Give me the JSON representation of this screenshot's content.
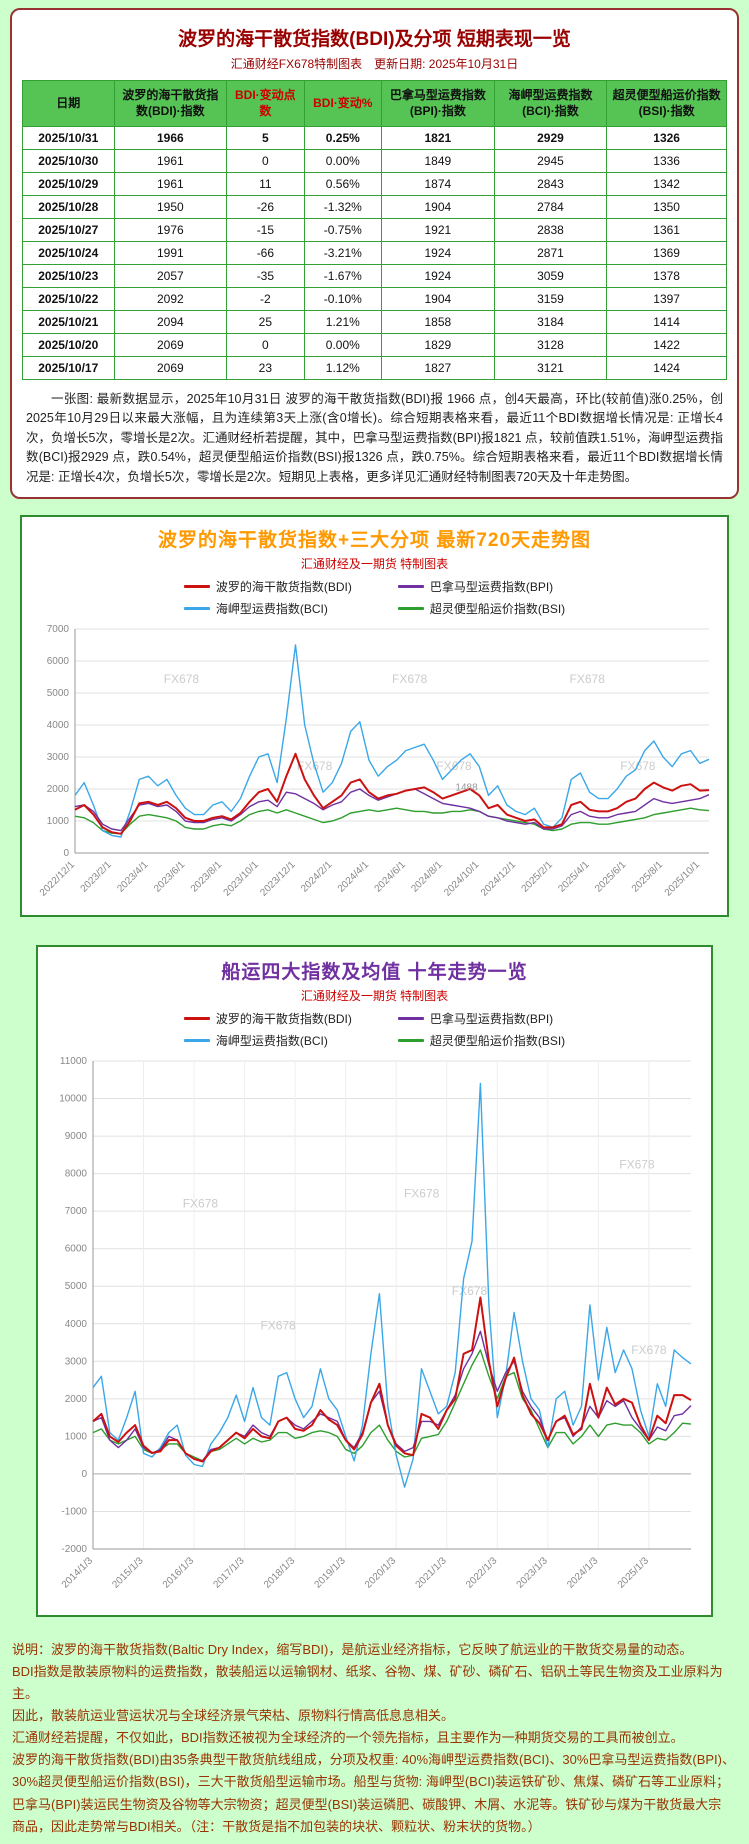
{
  "page": {
    "background": "#ccffcc"
  },
  "table_section": {
    "title": "波罗的海干散货指数(BDI)及分项 短期表现一览",
    "subtitle": "汇通财经FX678特制图表　更新日期: 2025年10月31日",
    "columns": [
      "日期",
      "波罗的海干散货指数(BDI)·指数",
      "BDI·变动点数",
      "BDI·变动%",
      "巴拿马型运费指数(BPI)·指数",
      "海岬型运费指数(BCI)·指数",
      "超灵便型船运价指数(BSI)·指数"
    ],
    "red_header_indexes": [
      2,
      3
    ],
    "rows": [
      [
        "2025/10/31",
        "1966",
        "5",
        "0.25%",
        "1821",
        "2929",
        "1326"
      ],
      [
        "2025/10/30",
        "1961",
        "0",
        "0.00%",
        "1849",
        "2945",
        "1336"
      ],
      [
        "2025/10/29",
        "1961",
        "11",
        "0.56%",
        "1874",
        "2843",
        "1342"
      ],
      [
        "2025/10/28",
        "1950",
        "-26",
        "-1.32%",
        "1904",
        "2784",
        "1350"
      ],
      [
        "2025/10/27",
        "1976",
        "-15",
        "-0.75%",
        "1921",
        "2838",
        "1361"
      ],
      [
        "2025/10/24",
        "1991",
        "-66",
        "-3.21%",
        "1924",
        "2871",
        "1369"
      ],
      [
        "2025/10/23",
        "2057",
        "-35",
        "-1.67%",
        "1924",
        "3059",
        "1378"
      ],
      [
        "2025/10/22",
        "2092",
        "-2",
        "-0.10%",
        "1904",
        "3159",
        "1397"
      ],
      [
        "2025/10/21",
        "2094",
        "25",
        "1.21%",
        "1858",
        "3184",
        "1414"
      ],
      [
        "2025/10/20",
        "2069",
        "0",
        "0.00%",
        "1829",
        "3128",
        "1422"
      ],
      [
        "2025/10/17",
        "2069",
        "23",
        "1.12%",
        "1827",
        "3121",
        "1424"
      ]
    ],
    "note": "一张图: 最新数据显示，2025年10月31日 波罗的海干散货指数(BDI)报 1966 点，创4天最高，环比(较前值)涨0.25%，创2025年10月29日以来最大涨幅，且为连续第3天上涨(含0增长)。综合短期表格来看，最近11个BDI数据增长情况是: 正增长4次，负增长5次，零增长是2次。汇通财经析若提醒，其中，巴拿马型运费指数(BPI)报1821 点，较前值跌1.51%，海岬型运费指数(BCI)报2929 点，跌0.54%，超灵便型船运价指数(BSI)报1326 点，跌0.75%。综合短期表格来看，最近11个BDI数据增长情况是: 正增长4次，负增长5次，零增长是2次。短期见上表格，更多详见汇通财经特制图表720天及十年走势图。"
  },
  "chart_data": [
    {
      "type": "line",
      "title": "波罗的海干散货指数+三大分项  最新720天走势图",
      "subtitle": "汇通财经及一期货  特制图表",
      "legend_position": "top",
      "grid": true,
      "vgrid": false,
      "watermark": "FX678",
      "watermark_positions": [
        [
          0.14,
          0.24
        ],
        [
          0.5,
          0.24
        ],
        [
          0.78,
          0.24
        ],
        [
          0.35,
          0.63
        ],
        [
          0.57,
          0.63
        ],
        [
          0.86,
          0.63
        ]
      ],
      "annotation": {
        "text": "1488",
        "x": 0.6,
        "y": 0.72
      },
      "ylim": [
        0,
        7000
      ],
      "ytick_step": 1000,
      "x_label_step": 4,
      "x_labels": [
        "2022/12/1",
        "2023/2/1",
        "2023/4/1",
        "2023/6/1",
        "2023/8/1",
        "2023/10/1",
        "2023/12/1",
        "2024/2/1",
        "2024/4/1",
        "2024/6/1",
        "2024/8/1",
        "2024/10/1",
        "2024/12/1",
        "2025/2/1",
        "2025/4/1",
        "2025/6/1",
        "2025/8/1",
        "2025/10/1"
      ],
      "series": [
        {
          "name": "波罗的海干散货指数(BDI)",
          "color": "#cc1111",
          "values": [
            1350,
            1500,
            1200,
            800,
            650,
            600,
            1000,
            1550,
            1600,
            1500,
            1600,
            1400,
            1100,
            1000,
            1000,
            1100,
            1150,
            1050,
            1250,
            1600,
            1900,
            2000,
            1600,
            2400,
            3100,
            2300,
            1800,
            1400,
            1600,
            1800,
            2200,
            2300,
            1900,
            1700,
            1800,
            1850,
            1950,
            2000,
            2050,
            1900,
            1700,
            1800,
            1900,
            2000,
            1800,
            1400,
            1500,
            1200,
            1100,
            1000,
            1050,
            800,
            800,
            900,
            1500,
            1600,
            1350,
            1300,
            1300,
            1400,
            1600,
            1700,
            2000,
            2200,
            2050,
            1950,
            2100,
            2150,
            1950,
            1966
          ]
        },
        {
          "name": "巴拿马型运费指数(BPI)",
          "color": "#7030a0",
          "values": [
            1450,
            1500,
            1300,
            900,
            750,
            700,
            1100,
            1500,
            1550,
            1450,
            1500,
            1300,
            1000,
            950,
            950,
            1050,
            1100,
            1000,
            1200,
            1450,
            1600,
            1650,
            1450,
            1900,
            1850,
            1700,
            1550,
            1350,
            1500,
            1600,
            1900,
            2000,
            1800,
            1650,
            1750,
            1850,
            1950,
            2000,
            1850,
            1700,
            1550,
            1500,
            1450,
            1400,
            1300,
            1150,
            1100,
            1000,
            950,
            900,
            950,
            750,
            750,
            850,
            1200,
            1300,
            1150,
            1100,
            1100,
            1200,
            1250,
            1300,
            1500,
            1700,
            1600,
            1550,
            1600,
            1650,
            1700,
            1821
          ]
        },
        {
          "name": "海岬型运费指数(BCI)",
          "color": "#3aa7e8",
          "values": [
            1800,
            2200,
            1500,
            700,
            550,
            500,
            1300,
            2300,
            2400,
            2100,
            2300,
            1800,
            1400,
            1200,
            1200,
            1500,
            1600,
            1300,
            1700,
            2400,
            3000,
            3100,
            2200,
            4200,
            6500,
            4000,
            2800,
            1900,
            2200,
            2800,
            3800,
            4100,
            2900,
            2400,
            2700,
            2900,
            3200,
            3300,
            3400,
            2900,
            2300,
            2600,
            2900,
            3100,
            2700,
            1800,
            2100,
            1500,
            1300,
            1200,
            1400,
            900,
            800,
            1100,
            2300,
            2500,
            1900,
            1700,
            1700,
            2000,
            2400,
            2600,
            3200,
            3500,
            3000,
            2700,
            3100,
            3200,
            2800,
            2929
          ]
        },
        {
          "name": "超灵便型船运价指数(BSI)",
          "color": "#2e9e2e",
          "values": [
            1150,
            1100,
            950,
            700,
            620,
            600,
            900,
            1150,
            1200,
            1150,
            1100,
            1000,
            800,
            750,
            750,
            850,
            900,
            850,
            1000,
            1200,
            1300,
            1350,
            1250,
            1350,
            1250,
            1150,
            1050,
            950,
            1000,
            1100,
            1250,
            1300,
            1350,
            1300,
            1350,
            1400,
            1350,
            1300,
            1300,
            1250,
            1250,
            1300,
            1300,
            1350,
            1300,
            1150,
            1100,
            1050,
            1000,
            950,
            900,
            750,
            700,
            750,
            900,
            950,
            950,
            900,
            900,
            950,
            1000,
            1050,
            1100,
            1200,
            1250,
            1300,
            1350,
            1400,
            1350,
            1326
          ]
        }
      ]
    },
    {
      "type": "line",
      "title": "船运四大指数及均值 十年走势一览",
      "subtitle": "汇通财经及一期货 特制图表",
      "legend_position": "top",
      "grid": true,
      "vgrid": true,
      "watermark": "FX678",
      "watermark_positions": [
        [
          0.15,
          0.3
        ],
        [
          0.52,
          0.28
        ],
        [
          0.88,
          0.22
        ],
        [
          0.28,
          0.55
        ],
        [
          0.6,
          0.48
        ],
        [
          0.9,
          0.6
        ]
      ],
      "ylim": [
        -2000,
        11000
      ],
      "ytick_step": 1000,
      "x_label_step": 6,
      "x_labels": [
        "2014/1/3",
        "2015/1/3",
        "2016/1/3",
        "2017/1/3",
        "2018/1/3",
        "2019/1/3",
        "2020/1/3",
        "2021/1/3",
        "2022/1/3",
        "2023/1/3",
        "2024/1/3",
        "2025/1/3"
      ],
      "series": [
        {
          "name": "波罗的海干散货指数(BDI)",
          "color": "#cc1111",
          "values": [
            1400,
            1600,
            1000,
            850,
            1100,
            1300,
            750,
            560,
            600,
            900,
            900,
            550,
            400,
            330,
            600,
            700,
            900,
            1100,
            950,
            1200,
            1000,
            950,
            1400,
            1500,
            1200,
            1150,
            1300,
            1700,
            1450,
            1300,
            900,
            650,
            1050,
            1900,
            2400,
            1300,
            750,
            550,
            500,
            1600,
            1500,
            1200,
            1700,
            2000,
            3200,
            3300,
            4700,
            3000,
            1800,
            2550,
            3100,
            2100,
            1600,
            1350,
            900,
            1400,
            1550,
            1050,
            1200,
            2400,
            1500,
            2300,
            1850,
            2000,
            1900,
            1300,
            900,
            1550,
            1350,
            2100,
            2100,
            1966
          ]
        },
        {
          "name": "巴拿马型运费指数(BPI)",
          "color": "#7030a0",
          "values": [
            1400,
            1500,
            900,
            700,
            900,
            1200,
            700,
            550,
            650,
            1000,
            900,
            550,
            400,
            350,
            650,
            700,
            900,
            1100,
            1000,
            1300,
            1100,
            1000,
            1400,
            1500,
            1300,
            1200,
            1400,
            1600,
            1500,
            1400,
            900,
            700,
            1100,
            1900,
            2200,
            1300,
            800,
            600,
            700,
            1400,
            1400,
            1300,
            1700,
            2100,
            2800,
            3200,
            3800,
            2900,
            2200,
            2700,
            3000,
            2200,
            1800,
            1500,
            900,
            1400,
            1500,
            1000,
            1250,
            1800,
            1500,
            1950,
            1800,
            1950,
            1500,
            1200,
            900,
            1250,
            1150,
            1550,
            1600,
            1821
          ]
        },
        {
          "name": "海岬型运费指数(BCI)",
          "color": "#3aa7e8",
          "values": [
            2300,
            2600,
            1100,
            900,
            1500,
            2200,
            550,
            450,
            700,
            1100,
            1300,
            500,
            250,
            200,
            800,
            1100,
            1500,
            2100,
            1400,
            2300,
            1500,
            1300,
            2600,
            2700,
            2000,
            1500,
            1800,
            2800,
            2000,
            1700,
            1000,
            350,
            1300,
            3200,
            4800,
            1800,
            500,
            -350,
            400,
            2800,
            2200,
            1600,
            1800,
            2700,
            5200,
            6200,
            10400,
            4500,
            1500,
            2600,
            4300,
            3000,
            2000,
            1700,
            700,
            2000,
            2200,
            1300,
            1800,
            4500,
            2500,
            3900,
            2700,
            3300,
            2800,
            1700,
            1000,
            2400,
            1800,
            3300,
            3100,
            2929
          ]
        },
        {
          "name": "超灵便型船运价指数(BSI)",
          "color": "#2e9e2e",
          "values": [
            1100,
            1200,
            900,
            800,
            900,
            1000,
            650,
            550,
            650,
            800,
            800,
            550,
            450,
            350,
            600,
            650,
            800,
            950,
            800,
            950,
            850,
            900,
            1100,
            1100,
            950,
            1000,
            1100,
            1150,
            1100,
            1000,
            650,
            550,
            750,
            1100,
            1300,
            900,
            600,
            450,
            500,
            950,
            1000,
            1050,
            1400,
            1900,
            2400,
            2900,
            3300,
            2600,
            2000,
            2600,
            2700,
            2000,
            1700,
            1200,
            700,
            1100,
            1100,
            800,
            1000,
            1300,
            1000,
            1300,
            1350,
            1300,
            1300,
            1100,
            800,
            950,
            900,
            1100,
            1350,
            1326
          ]
        }
      ]
    }
  ],
  "footer": {
    "lines": [
      "说明：波罗的海干散货指数(Baltic Dry Index，缩写BDI)，是航运业经济指标，它反映了航运业的干散货交易量的动态。",
      "BDI指数是散装原物料的运费指数，散装船运以运输钢材、纸浆、谷物、煤、矿砂、磷矿石、铝矾土等民生物资及工业原料为主。",
      "因此，散装航运业营运状况与全球经济景气荣枯、原物料行情高低息息相关。",
      "汇通财经若提醒，不仅如此，BDI指数还被视为全球经济的一个领先指标，且主要作为一种期货交易的工具而被创立。",
      "波罗的海干散货指数(BDI)由35条典型干散货航线组成，分项及权重: 40%海岬型运费指数(BCI)、30%巴拿马型运费指数(BPI)、",
      "30%超灵便型船运价指数(BSI)，三大干散货船型运输市场。船型与货物: 海岬型(BCI)装运铁矿砂、焦煤、磷矿石等工业原料；",
      "巴拿马(BPI)装运民生物资及谷物等大宗物资；超灵便型(BSI)装运磷肥、碳酸钾、木屑、水泥等。铁矿砂与煤为干散货最大宗",
      "商品，因此走势常与BDI相关。（注：干散货是指不加包装的块状、颗粒状、粉末状的货物。）"
    ]
  },
  "colors": {
    "page_green": "#ccffcc",
    "table_border_red": "#993333",
    "table_grid_green": "#33a033",
    "table_header_green": "#55c455",
    "title_maroon": "#990000",
    "chart1_title_orange": "#ff9900",
    "chart2_title_purple": "#7030a0",
    "subtitle_red": "#cc0000",
    "footer_brown": "#993300",
    "bdi_line": "#cc1111",
    "bpi_line": "#7030a0",
    "bci_line": "#3aa7e8",
    "bsi_line": "#2e9e2e"
  }
}
